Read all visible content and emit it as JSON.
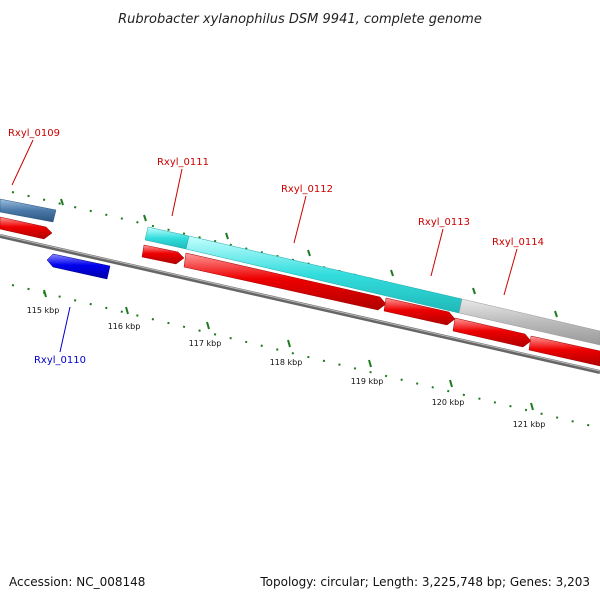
{
  "title": "Rubrobacter xylanophilus DSM 9941, complete genome",
  "accession": "Accession: NC_008148",
  "summary": "Topology: circular; Length: 3,225,748 bp; Genes: 3,203",
  "colors": {
    "background": "#ffffff",
    "backbone": "#777777",
    "tick": "#1e7a1e",
    "label_forward": "#cc0000",
    "label_reverse": "#0000cc",
    "cds_forward": "#ee0000",
    "cds_reverse": "#0000ee",
    "feature_cyan": "#33dddd",
    "feature_gray": "#bbbbbb",
    "feature_steel": "#4a78a8"
  },
  "scale_labels": [
    "115 kbp",
    "116 kbp",
    "117 kbp",
    "118 kbp",
    "119 kbp",
    "120 kbp",
    "121 kbp"
  ],
  "genes": [
    {
      "id": "Rxyl_0109",
      "strand": "forward"
    },
    {
      "id": "Rxyl_0110",
      "strand": "reverse"
    },
    {
      "id": "Rxyl_0111",
      "strand": "forward"
    },
    {
      "id": "Rxyl_0112",
      "strand": "forward"
    },
    {
      "id": "Rxyl_0113",
      "strand": "forward"
    },
    {
      "id": "Rxyl_0114",
      "strand": "forward"
    }
  ]
}
